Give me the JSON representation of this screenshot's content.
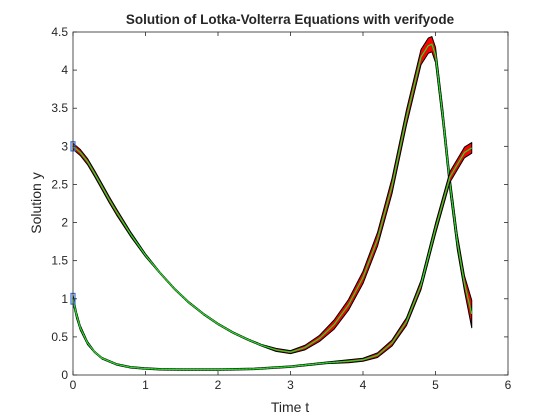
{
  "chart_data": {
    "type": "line",
    "title": "Solution of Lotka-Volterra Equations with verifyode",
    "xlabel": "Time t",
    "ylabel": "Solution y",
    "xlim": [
      0,
      6
    ],
    "ylim": [
      0,
      4.5
    ],
    "xticks": [
      "0",
      "1",
      "2",
      "3",
      "4",
      "5",
      "6"
    ],
    "yticks": [
      "0",
      "0.5",
      "1",
      "1.5",
      "2",
      "2.5",
      "3",
      "3.5",
      "4",
      "4.5"
    ],
    "grid": false,
    "legend": "none",
    "colors": {
      "band": "#ff0000",
      "outline": "#000000",
      "center": "#2bd62b",
      "center_dark": "#1a8c1a",
      "box": "#3d6fd6",
      "axis": "#262626"
    },
    "series": [
      {
        "x": [
          0,
          0.1,
          0.2,
          0.3,
          0.4,
          0.5,
          0.6,
          0.8,
          1.0,
          1.2,
          1.4,
          1.6,
          1.8,
          2.0,
          2.2,
          2.4,
          2.6,
          2.8,
          3.0,
          3.2,
          3.4,
          3.6,
          3.8,
          4.0,
          4.2,
          4.4,
          4.6,
          4.8,
          4.9,
          4.95,
          5.0,
          5.1,
          5.2,
          5.3,
          5.4,
          5.5
        ],
        "y": [
          3.0,
          2.92,
          2.8,
          2.64,
          2.47,
          2.3,
          2.14,
          1.84,
          1.57,
          1.34,
          1.13,
          0.95,
          0.8,
          0.67,
          0.56,
          0.47,
          0.39,
          0.33,
          0.3,
          0.36,
          0.48,
          0.66,
          0.92,
          1.28,
          1.78,
          2.48,
          3.38,
          4.17,
          4.32,
          4.34,
          4.2,
          3.4,
          2.5,
          1.75,
          1.2,
          0.8
        ],
        "halfwidth": [
          0.04,
          0.04,
          0.04,
          0.04,
          0.04,
          0.04,
          0.04,
          0.03,
          0.02,
          0.01,
          0.01,
          0.01,
          0.01,
          0.01,
          0.01,
          0.01,
          0.01,
          0.02,
          0.02,
          0.03,
          0.04,
          0.06,
          0.07,
          0.08,
          0.09,
          0.1,
          0.1,
          0.1,
          0.1,
          0.1,
          0.1,
          0.1,
          0.1,
          0.1,
          0.1,
          0.18
        ]
      },
      {
        "x": [
          0,
          0.05,
          0.1,
          0.2,
          0.3,
          0.4,
          0.6,
          0.8,
          1.0,
          1.2,
          1.5,
          2.0,
          2.5,
          3.0,
          3.5,
          3.8,
          4.0,
          4.2,
          4.4,
          4.6,
          4.8,
          5.0,
          5.2,
          5.4,
          5.5
        ],
        "y": [
          1.0,
          0.78,
          0.62,
          0.42,
          0.3,
          0.22,
          0.14,
          0.1,
          0.085,
          0.075,
          0.07,
          0.07,
          0.08,
          0.11,
          0.16,
          0.18,
          0.2,
          0.26,
          0.42,
          0.7,
          1.18,
          1.92,
          2.6,
          2.92,
          2.98
        ],
        "halfwidth": [
          0.05,
          0.04,
          0.03,
          0.02,
          0.01,
          0.01,
          0.01,
          0.01,
          0.01,
          0.01,
          0.01,
          0.01,
          0.01,
          0.01,
          0.01,
          0.02,
          0.02,
          0.03,
          0.04,
          0.05,
          0.06,
          0.07,
          0.07,
          0.07,
          0.07
        ]
      }
    ]
  }
}
